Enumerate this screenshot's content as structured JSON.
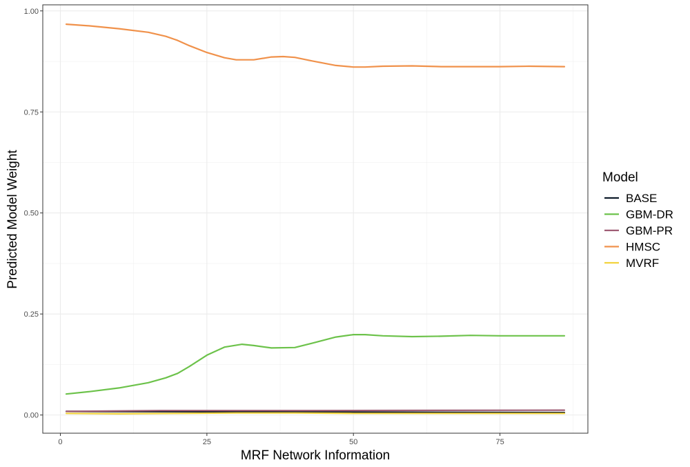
{
  "chart_data": {
    "type": "line",
    "xlabel": "MRF Network Information",
    "ylabel": "Predicted Model Weight",
    "xlim": [
      -3,
      90
    ],
    "ylim": [
      -0.045,
      1.015
    ],
    "x_ticks": [
      0,
      25,
      50,
      75
    ],
    "y_ticks": [
      0.0,
      0.25,
      0.5,
      0.75,
      1.0
    ],
    "x_tick_labels": [
      "0",
      "25",
      "50",
      "75"
    ],
    "y_tick_labels": [
      "0.00",
      "0.25",
      "0.50",
      "0.75",
      "1.00"
    ],
    "grid": true,
    "legend": {
      "title": "Model",
      "position": "right"
    },
    "series": [
      {
        "name": "BASE",
        "color": "#0d1b2a",
        "x": [
          1,
          86
        ],
        "y": [
          0.009,
          0.006
        ]
      },
      {
        "name": "GBM-DR",
        "color": "#6cc24a",
        "x": [
          1,
          5,
          10,
          15,
          18,
          20,
          22,
          25,
          28,
          31,
          33,
          36,
          40,
          43,
          47,
          50,
          52,
          55,
          60,
          65,
          70,
          75,
          80,
          86
        ],
        "y": [
          0.052,
          0.058,
          0.067,
          0.08,
          0.092,
          0.103,
          0.12,
          0.148,
          0.168,
          0.175,
          0.172,
          0.166,
          0.167,
          0.178,
          0.193,
          0.199,
          0.199,
          0.196,
          0.194,
          0.195,
          0.197,
          0.196,
          0.196,
          0.196
        ]
      },
      {
        "name": "GBM-PR",
        "color": "#9e5b73",
        "x": [
          1,
          17,
          25,
          42,
          86
        ],
        "y": [
          0.009,
          0.011,
          0.011,
          0.011,
          0.012
        ]
      },
      {
        "name": "HMSC",
        "color": "#f0914a",
        "x": [
          1,
          5,
          10,
          15,
          18,
          20,
          22,
          25,
          28,
          30,
          33,
          36,
          38,
          40,
          43,
          47,
          50,
          52,
          55,
          60,
          65,
          70,
          75,
          80,
          86
        ],
        "y": [
          0.967,
          0.963,
          0.956,
          0.947,
          0.937,
          0.927,
          0.914,
          0.897,
          0.884,
          0.879,
          0.879,
          0.886,
          0.887,
          0.885,
          0.876,
          0.865,
          0.861,
          0.861,
          0.863,
          0.864,
          0.862,
          0.862,
          0.862,
          0.863,
          0.862
        ]
      },
      {
        "name": "MVRF",
        "color": "#f2d33d",
        "x": [
          1,
          10,
          20,
          30,
          40,
          50,
          60,
          70,
          86
        ],
        "y": [
          0.004,
          0.003,
          0.004,
          0.005,
          0.005,
          0.004,
          0.004,
          0.004,
          0.004
        ]
      }
    ]
  }
}
